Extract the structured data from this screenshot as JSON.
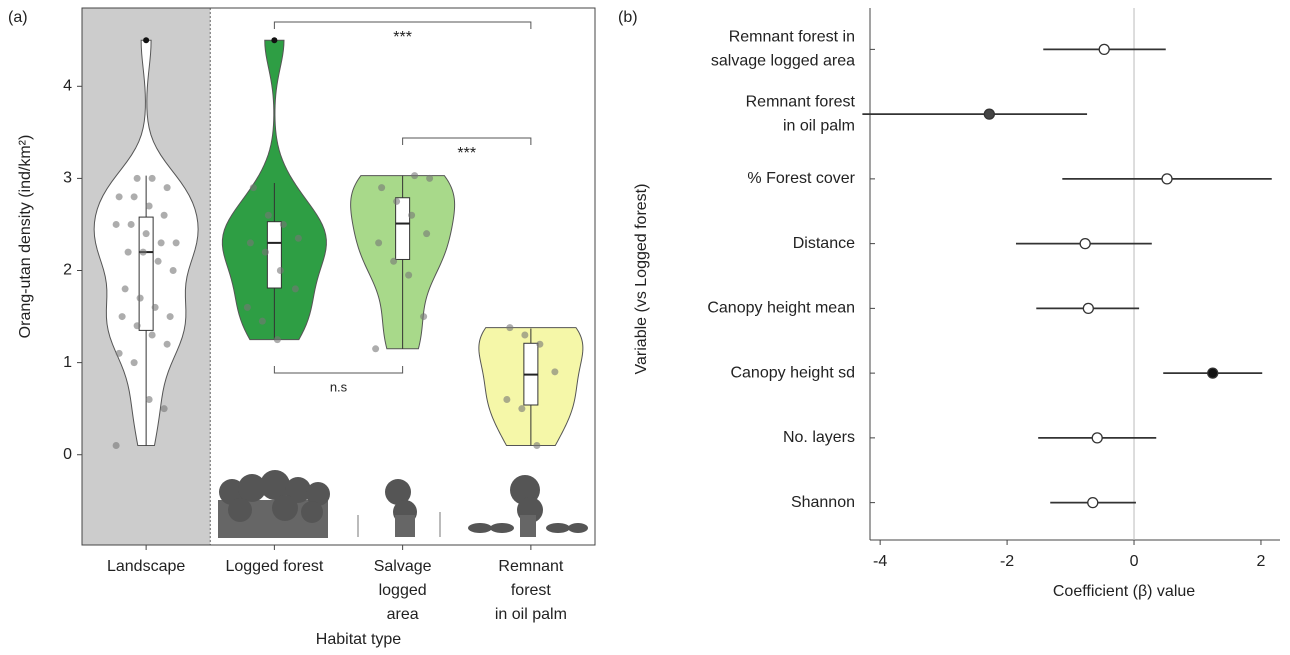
{
  "chart_data": [
    {
      "type": "violin",
      "panel_label": "(a)",
      "y_label": "Orang-utan density (ind/km²)",
      "x_label": "Habitat type",
      "categories": [
        [
          "Landscape"
        ],
        [
          "Logged forest"
        ],
        [
          "Salvage",
          "logged",
          "area"
        ],
        [
          "Remnant",
          "forest",
          "in oil palm"
        ]
      ],
      "ylim": [
        -0.98,
        4.85
      ],
      "yticks": [
        0,
        1,
        2,
        3,
        4
      ],
      "shade_color": "#cccccc",
      "shaded_category": 0,
      "boxes": [
        {
          "color": "#ffffff",
          "min": 0.1,
          "q1": 1.35,
          "median": 2.2,
          "q3": 2.58,
          "max": 3.03,
          "outliers": [
            4.5
          ],
          "points": [
            0.1,
            0.5,
            0.6,
            1.0,
            1.1,
            1.2,
            1.3,
            1.4,
            1.5,
            1.5,
            1.6,
            1.7,
            1.8,
            2.0,
            2.1,
            2.2,
            2.2,
            2.3,
            2.3,
            2.4,
            2.5,
            2.5,
            2.6,
            2.7,
            2.8,
            2.8,
            2.9,
            3.0,
            3.0
          ]
        },
        {
          "color": "#2e9e44",
          "min": 1.25,
          "q1": 1.81,
          "median": 2.3,
          "q3": 2.53,
          "max": 2.95,
          "outliers": [
            4.5
          ],
          "points": [
            1.25,
            1.45,
            1.6,
            1.8,
            2.0,
            2.2,
            2.3,
            2.35,
            2.5,
            2.6,
            2.9
          ]
        },
        {
          "color": "#a8d98a",
          "min": 1.15,
          "q1": 2.12,
          "median": 2.51,
          "q3": 2.79,
          "max": 3.03,
          "outliers": [],
          "points": [
            1.15,
            1.5,
            1.95,
            2.1,
            2.3,
            2.4,
            2.6,
            2.75,
            2.9,
            3.0,
            3.03
          ]
        },
        {
          "color": "#f5f7a8",
          "min": 0.1,
          "q1": 0.54,
          "median": 0.87,
          "q3": 1.21,
          "max": 1.37,
          "outliers": [],
          "points": [
            0.1,
            0.5,
            0.6,
            0.9,
            1.2,
            1.3,
            1.38
          ]
        }
      ],
      "comparisons": [
        {
          "from": 1,
          "to": 3,
          "label": "***"
        },
        {
          "from": 2,
          "to": 3,
          "label": "***"
        },
        {
          "from": 1,
          "to": 2,
          "label": "n.s"
        }
      ]
    },
    {
      "type": "dotwhisker",
      "panel_label": "(b)",
      "x_label": "Coefficient (β) value",
      "y_label": "Variable (vs Logged forest)",
      "categories": [
        [
          "Remnant forest in",
          "salvage logged area"
        ],
        [
          "Remnant forest",
          "in oil palm"
        ],
        [
          "% Forest cover"
        ],
        [
          "Distance"
        ],
        [
          "Canopy height mean"
        ],
        [
          "Canopy height sd"
        ],
        [
          "No. layers"
        ],
        [
          "Shannon"
        ]
      ],
      "values": [
        -0.47,
        -2.28,
        0.52,
        -0.77,
        -0.72,
        1.24,
        -0.58,
        -0.65
      ],
      "lower": [
        -1.43,
        -4.28,
        -1.13,
        -1.86,
        -1.54,
        0.46,
        -1.51,
        -1.32
      ],
      "upper": [
        0.5,
        -0.74,
        2.17,
        0.28,
        0.08,
        2.02,
        0.35,
        0.03
      ],
      "colors": [
        "#ffffff",
        "#444444",
        "#ffffff",
        "#ffffff",
        "#ffffff",
        "#111111",
        "#ffffff",
        "#ffffff"
      ],
      "xlim": [
        -4.16,
        2.3
      ],
      "xticks": [
        -4,
        -2,
        0,
        2
      ],
      "zero_line": true
    }
  ]
}
